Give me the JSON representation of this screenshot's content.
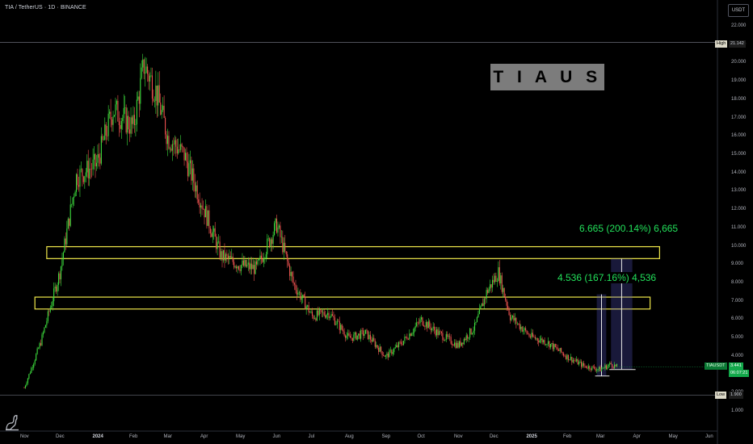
{
  "header": {
    "symbol": "TIA / TetherUS · 1D · BINANCE",
    "currency": "USDT",
    "title": "T I A  U S D T"
  },
  "price_scale": {
    "ticks": [
      "22.000",
      "21.000",
      "20.000",
      "19.000",
      "18.000",
      "17.000",
      "16.000",
      "15.000",
      "14.000",
      "13.000",
      "12.000",
      "11.000",
      "10.000",
      "9.000",
      "8.000",
      "7.000",
      "6.000",
      "5.000",
      "4.000",
      "3.000",
      "2.000",
      "1.000"
    ],
    "high_label": "High",
    "high_value": "21.142",
    "low_label": "Low",
    "low_value": "1.900",
    "last_symbol": "TIAUSDT",
    "last_value": "3.441",
    "last_countdown": "06:07:21"
  },
  "time_axis": {
    "ticks": [
      {
        "label": "Nov",
        "bold": false
      },
      {
        "label": "Dec",
        "bold": false
      },
      {
        "label": "2024",
        "bold": true
      },
      {
        "label": "Feb",
        "bold": false
      },
      {
        "label": "Mar",
        "bold": false
      },
      {
        "label": "Apr",
        "bold": false
      },
      {
        "label": "May",
        "bold": false
      },
      {
        "label": "Jun",
        "bold": false
      },
      {
        "label": "Jul",
        "bold": false
      },
      {
        "label": "Aug",
        "bold": false
      },
      {
        "label": "Sep",
        "bold": false
      },
      {
        "label": "Oct",
        "bold": false
      },
      {
        "label": "Nov",
        "bold": false
      },
      {
        "label": "Dec",
        "bold": false
      },
      {
        "label": "2025",
        "bold": true
      },
      {
        "label": "Feb",
        "bold": false
      },
      {
        "label": "Mar",
        "bold": false
      },
      {
        "label": "Apr",
        "bold": false
      },
      {
        "label": "May",
        "bold": false
      },
      {
        "label": "Jun",
        "bold": false
      }
    ]
  },
  "annotations": {
    "target1": "4.536 (167.16%) 4,536",
    "target2": "6.665 (200.14%) 6,665"
  },
  "colors": {
    "up": "#26a65b",
    "up_bright": "#3ddc3d",
    "down": "#ef5350",
    "zone": "#f0e84a",
    "projection": "#5b5bcf",
    "background": "#000000"
  },
  "chart_data": {
    "type": "candlestick",
    "x_range": [
      "2023-11-01",
      "2025-06-01"
    ],
    "ylim": [
      1.0,
      22.5
    ],
    "grid": false,
    "key_points": [
      {
        "date": "2023-11-01",
        "price": 2.3
      },
      {
        "date": "2023-11-15",
        "price": 4.8
      },
      {
        "date": "2023-12-01",
        "price": 8.6
      },
      {
        "date": "2023-12-15",
        "price": 13.8
      },
      {
        "date": "2024-01-01",
        "price": 14.5
      },
      {
        "date": "2024-01-15",
        "price": 17.5
      },
      {
        "date": "2024-02-01",
        "price": 16.5
      },
      {
        "date": "2024-02-10",
        "price": 19.9
      },
      {
        "date": "2024-02-20",
        "price": 18.5
      },
      {
        "date": "2024-03-01",
        "price": 16.0
      },
      {
        "date": "2024-03-15",
        "price": 15.0
      },
      {
        "date": "2024-04-01",
        "price": 12.0
      },
      {
        "date": "2024-04-15",
        "price": 9.5
      },
      {
        "date": "2024-05-01",
        "price": 9.0
      },
      {
        "date": "2024-05-15",
        "price": 8.8
      },
      {
        "date": "2024-06-01",
        "price": 11.2
      },
      {
        "date": "2024-06-15",
        "price": 8.0
      },
      {
        "date": "2024-07-01",
        "price": 6.2
      },
      {
        "date": "2024-07-15",
        "price": 6.4
      },
      {
        "date": "2024-08-01",
        "price": 5.0
      },
      {
        "date": "2024-08-15",
        "price": 5.3
      },
      {
        "date": "2024-09-01",
        "price": 4.0
      },
      {
        "date": "2024-09-15",
        "price": 4.8
      },
      {
        "date": "2024-10-01",
        "price": 6.0
      },
      {
        "date": "2024-10-15",
        "price": 5.3
      },
      {
        "date": "2024-11-01",
        "price": 4.6
      },
      {
        "date": "2024-11-15",
        "price": 5.6
      },
      {
        "date": "2024-11-25",
        "price": 7.5
      },
      {
        "date": "2024-12-05",
        "price": 8.6
      },
      {
        "date": "2024-12-15",
        "price": 6.2
      },
      {
        "date": "2025-01-01",
        "price": 5.1
      },
      {
        "date": "2025-01-15",
        "price": 4.8
      },
      {
        "date": "2025-02-01",
        "price": 4.0
      },
      {
        "date": "2025-02-15",
        "price": 3.5
      },
      {
        "date": "2025-03-01",
        "price": 3.3
      },
      {
        "date": "2025-03-10",
        "price": 3.6
      },
      {
        "date": "2025-03-15",
        "price": 3.441
      }
    ],
    "zones": [
      {
        "from": "2023-11-20",
        "to": "2025-04-20",
        "low": 9.35,
        "high": 10.0
      },
      {
        "from": "2023-11-10",
        "to": "2025-04-12",
        "low": 6.6,
        "high": 7.25
      }
    ],
    "projections": [
      {
        "label": "4.536 (167.16%) 4,536",
        "from": "2025-02-26",
        "to": "2025-03-06",
        "base": 2.95,
        "target": 7.4
      },
      {
        "label": "6.665 (200.14%) 6,665",
        "from": "2025-03-10",
        "to": "2025-03-28",
        "base": 3.3,
        "target": 9.35
      }
    ],
    "high": 21.142,
    "low": 1.9,
    "last": 3.441
  }
}
